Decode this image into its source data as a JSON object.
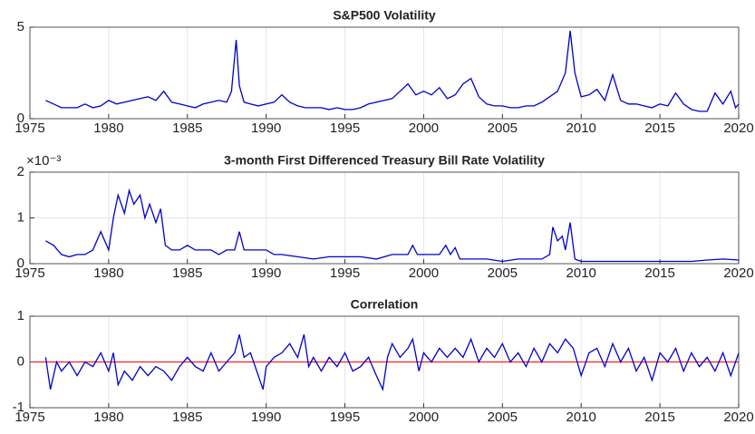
{
  "chart_data": [
    {
      "type": "line",
      "title": "S&P500 Volatility",
      "color": "#0000cc",
      "grid": true,
      "xlim": [
        1975,
        2020
      ],
      "xticks": [
        1975,
        1980,
        1985,
        1990,
        1995,
        2000,
        2005,
        2010,
        2015,
        2020
      ],
      "ylim": [
        0,
        5
      ],
      "yticks": [
        0,
        5
      ],
      "x": [
        1976,
        1976.5,
        1977,
        1977.5,
        1978,
        1978.5,
        1979,
        1979.5,
        1980,
        1980.5,
        1981,
        1981.5,
        1982,
        1982.5,
        1983,
        1983.5,
        1984,
        1984.5,
        1985,
        1985.5,
        1986,
        1986.5,
        1987,
        1987.5,
        1987.8,
        1988.1,
        1988.3,
        1988.6,
        1989,
        1989.5,
        1990,
        1990.5,
        1991,
        1991.5,
        1992,
        1992.5,
        1993,
        1993.5,
        1994,
        1994.5,
        1995,
        1995.5,
        1996,
        1996.5,
        1997,
        1997.5,
        1998,
        1998.5,
        1999,
        1999.5,
        2000,
        2000.5,
        2001,
        2001.5,
        2002,
        2002.5,
        2003,
        2003.5,
        2004,
        2004.5,
        2005,
        2005.5,
        2006,
        2006.5,
        2007,
        2007.5,
        2008,
        2008.5,
        2009,
        2009.3,
        2009.6,
        2010,
        2010.5,
        2011,
        2011.5,
        2012,
        2012.5,
        2013,
        2013.5,
        2014,
        2014.5,
        2015,
        2015.5,
        2016,
        2016.5,
        2017,
        2017.5,
        2018,
        2018.5,
        2019,
        2019.5,
        2019.8,
        2020
      ],
      "values": [
        1.0,
        0.8,
        0.6,
        0.6,
        0.6,
        0.8,
        0.6,
        0.7,
        1.0,
        0.8,
        0.9,
        1.0,
        1.1,
        1.2,
        1.0,
        1.5,
        0.9,
        0.8,
        0.7,
        0.6,
        0.8,
        0.9,
        1.0,
        0.9,
        1.5,
        4.3,
        1.8,
        0.9,
        0.8,
        0.7,
        0.8,
        0.9,
        1.3,
        0.9,
        0.7,
        0.6,
        0.6,
        0.6,
        0.5,
        0.6,
        0.5,
        0.5,
        0.6,
        0.8,
        0.9,
        1.0,
        1.1,
        1.5,
        1.9,
        1.3,
        1.5,
        1.3,
        1.7,
        1.1,
        1.3,
        1.9,
        2.2,
        1.2,
        0.8,
        0.7,
        0.7,
        0.6,
        0.6,
        0.7,
        0.7,
        0.9,
        1.2,
        1.5,
        2.5,
        4.8,
        2.5,
        1.2,
        1.3,
        1.6,
        1.0,
        2.4,
        1.0,
        0.8,
        0.8,
        0.7,
        0.6,
        0.8,
        0.7,
        1.4,
        0.8,
        0.5,
        0.4,
        0.4,
        1.4,
        0.8,
        1.5,
        0.6,
        0.8
      ]
    },
    {
      "type": "line",
      "title": "3-month First Differenced Treasury Bill Rate Volatility",
      "y_exponent_label": "×10⁻³",
      "color": "#0000cc",
      "grid": true,
      "xlim": [
        1975,
        2020
      ],
      "xticks": [
        1975,
        1980,
        1985,
        1990,
        1995,
        2000,
        2005,
        2010,
        2015,
        2020
      ],
      "ylim": [
        0,
        2
      ],
      "yticks": [
        0,
        1,
        2
      ],
      "x": [
        1976,
        1976.5,
        1977,
        1977.5,
        1978,
        1978.5,
        1979,
        1979.5,
        1980,
        1980.3,
        1980.6,
        1981,
        1981.3,
        1981.6,
        1982,
        1982.3,
        1982.6,
        1983,
        1983.3,
        1983.6,
        1984,
        1984.5,
        1985,
        1985.5,
        1986,
        1986.5,
        1987,
        1987.5,
        1988,
        1988.3,
        1988.6,
        1989,
        1989.5,
        1990,
        1990.5,
        1991,
        1992,
        1993,
        1994,
        1995,
        1996,
        1997,
        1998,
        1999,
        1999.3,
        1999.6,
        2000,
        2000.5,
        2001,
        2001.4,
        2001.7,
        2002,
        2002.3,
        2003,
        2004,
        2005,
        2006,
        2007,
        2007.5,
        2008,
        2008.2,
        2008.5,
        2008.8,
        2009,
        2009.3,
        2009.6,
        2010,
        2011,
        2012,
        2013,
        2014,
        2015,
        2016,
        2017,
        2018,
        2019,
        2020
      ],
      "values": [
        0.5,
        0.4,
        0.2,
        0.15,
        0.2,
        0.2,
        0.3,
        0.7,
        0.3,
        1.0,
        1.5,
        1.1,
        1.6,
        1.3,
        1.5,
        1.0,
        1.3,
        0.9,
        1.2,
        0.4,
        0.3,
        0.3,
        0.4,
        0.3,
        0.3,
        0.3,
        0.2,
        0.3,
        0.3,
        0.7,
        0.3,
        0.3,
        0.3,
        0.3,
        0.2,
        0.2,
        0.15,
        0.1,
        0.15,
        0.15,
        0.15,
        0.1,
        0.2,
        0.2,
        0.4,
        0.2,
        0.2,
        0.2,
        0.2,
        0.4,
        0.2,
        0.35,
        0.1,
        0.1,
        0.1,
        0.05,
        0.1,
        0.1,
        0.1,
        0.2,
        0.8,
        0.5,
        0.6,
        0.3,
        0.9,
        0.1,
        0.05,
        0.05,
        0.05,
        0.05,
        0.05,
        0.05,
        0.05,
        0.05,
        0.08,
        0.1,
        0.08
      ]
    },
    {
      "type": "line",
      "title": "Correlation",
      "color": "#0000cc",
      "grid": true,
      "reference_line": {
        "value": 0,
        "color": "#ff0000"
      },
      "xlim": [
        1975,
        2020
      ],
      "xticks": [
        1975,
        1980,
        1985,
        1990,
        1995,
        2000,
        2005,
        2010,
        2015,
        2020
      ],
      "ylim": [
        -1,
        1
      ],
      "yticks": [
        -1,
        0,
        1
      ],
      "x": [
        1976,
        1976.3,
        1976.7,
        1977,
        1977.5,
        1978,
        1978.5,
        1979,
        1979.5,
        1980,
        1980.3,
        1980.6,
        1981,
        1981.5,
        1982,
        1982.5,
        1983,
        1983.5,
        1984,
        1984.5,
        1985,
        1985.5,
        1986,
        1986.5,
        1987,
        1987.5,
        1988,
        1988.3,
        1988.6,
        1989,
        1989.5,
        1989.8,
        1990,
        1990.5,
        1991,
        1991.5,
        1992,
        1992.4,
        1992.7,
        1993,
        1993.5,
        1994,
        1994.5,
        1995,
        1995.5,
        1996,
        1996.5,
        1997,
        1997.4,
        1997.7,
        1998,
        1998.5,
        1999,
        1999.3,
        1999.7,
        2000,
        2000.5,
        2001,
        2001.5,
        2002,
        2002.5,
        2003,
        2003.5,
        2004,
        2004.5,
        2005,
        2005.5,
        2006,
        2006.5,
        2007,
        2007.5,
        2008,
        2008.5,
        2009,
        2009.5,
        2010,
        2010.5,
        2011,
        2011.5,
        2012,
        2012.5,
        2013,
        2013.5,
        2014,
        2014.5,
        2015,
        2015.5,
        2016,
        2016.5,
        2017,
        2017.5,
        2018,
        2018.5,
        2019,
        2019.5,
        2020
      ],
      "values": [
        0.1,
        -0.6,
        0.0,
        -0.2,
        0.0,
        -0.3,
        0.0,
        -0.1,
        0.2,
        -0.2,
        0.2,
        -0.5,
        -0.2,
        -0.4,
        -0.1,
        -0.3,
        -0.1,
        -0.2,
        -0.4,
        -0.1,
        0.1,
        -0.1,
        -0.2,
        0.2,
        -0.2,
        0.0,
        0.2,
        0.6,
        0.1,
        0.2,
        -0.3,
        -0.6,
        -0.1,
        0.1,
        0.2,
        0.4,
        0.1,
        0.6,
        -0.1,
        0.1,
        -0.2,
        0.1,
        -0.1,
        0.2,
        -0.2,
        -0.1,
        0.1,
        -0.3,
        -0.6,
        0.1,
        0.4,
        0.1,
        0.3,
        0.5,
        -0.2,
        0.2,
        0.0,
        0.3,
        0.1,
        0.3,
        0.1,
        0.5,
        0.0,
        0.3,
        0.1,
        0.4,
        0.0,
        0.2,
        -0.1,
        0.3,
        0.0,
        0.4,
        0.2,
        0.5,
        0.3,
        -0.3,
        0.2,
        0.3,
        -0.1,
        0.4,
        0.0,
        0.3,
        -0.2,
        0.1,
        -0.4,
        0.2,
        0.0,
        0.3,
        -0.2,
        0.2,
        -0.1,
        0.1,
        -0.2,
        0.2,
        -0.3,
        0.2
      ]
    }
  ]
}
